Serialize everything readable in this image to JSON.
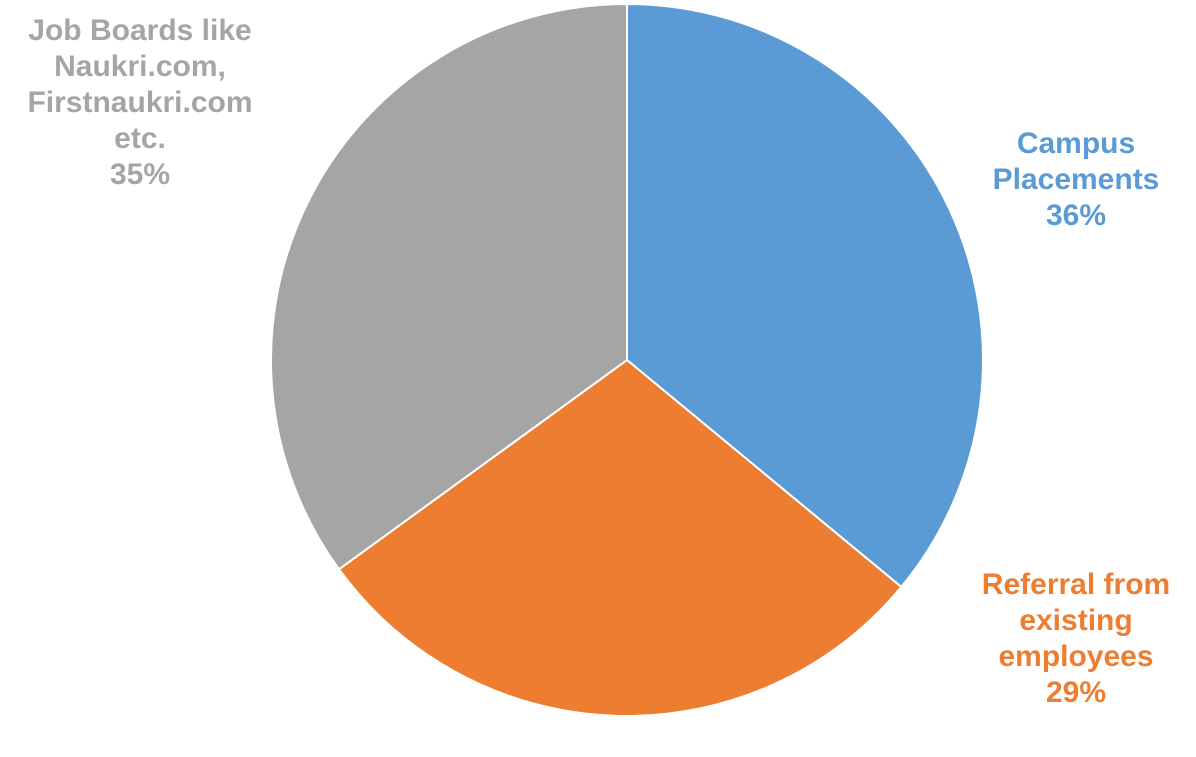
{
  "chart_data": {
    "type": "pie",
    "start_angle_deg": 0,
    "direction": "clockwise",
    "slices": [
      {
        "label_lines": [
          "Campus",
          "Placements"
        ],
        "value": 36,
        "value_label": "36%",
        "color": "#5B9BD5"
      },
      {
        "label_lines": [
          "Referral from",
          "existing",
          "employees"
        ],
        "value": 29,
        "value_label": "29%",
        "color": "#ED7D31"
      },
      {
        "label_lines": [
          "Job Boards like",
          "Naukri.com,",
          "Firstnaukri.com",
          "etc."
        ],
        "value": 35,
        "value_label": "35%",
        "color": "#A5A5A5"
      }
    ]
  }
}
